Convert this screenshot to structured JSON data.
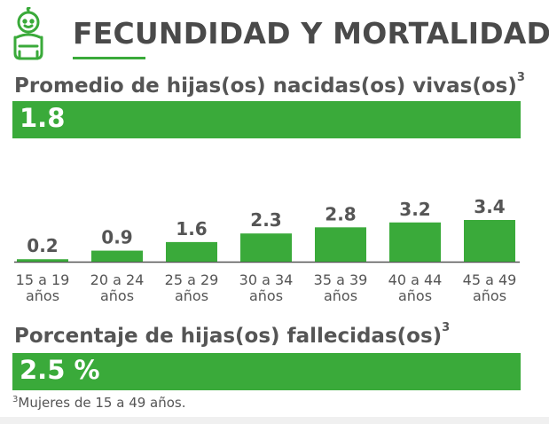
{
  "header": {
    "title": "FECUNDIDAD Y MORTALIDAD",
    "icon": "baby-icon",
    "accent_color": "#3aaa3a"
  },
  "promedio": {
    "title": "Promedio de hijas(os) nacidas(os) vivas(os)",
    "footnote_mark": "3",
    "value": "1.8"
  },
  "porcentaje": {
    "title": "Porcentaje de hijas(os) fallecidas(os)",
    "footnote_mark": "3",
    "value": "2.5 %"
  },
  "footnote": {
    "mark": "3",
    "text": "Mujeres de 15 a 49 años."
  },
  "chart_data": {
    "type": "bar",
    "categories": [
      [
        "15 a 19",
        "años"
      ],
      [
        "20 a 24",
        "años"
      ],
      [
        "25 a 29",
        "años"
      ],
      [
        "30 a 34",
        "años"
      ],
      [
        "35 a 39",
        "años"
      ],
      [
        "40 a 44",
        "años"
      ],
      [
        "45 a 49",
        "años"
      ]
    ],
    "values": [
      0.2,
      0.9,
      1.6,
      2.3,
      2.8,
      3.2,
      3.4
    ],
    "value_labels": [
      "0.2",
      "0.9",
      "1.6",
      "2.3",
      "2.8",
      "3.2",
      "3.4"
    ],
    "bar_color": "#3aaa3a",
    "ylim": [
      0,
      3.4
    ],
    "grid": false
  }
}
